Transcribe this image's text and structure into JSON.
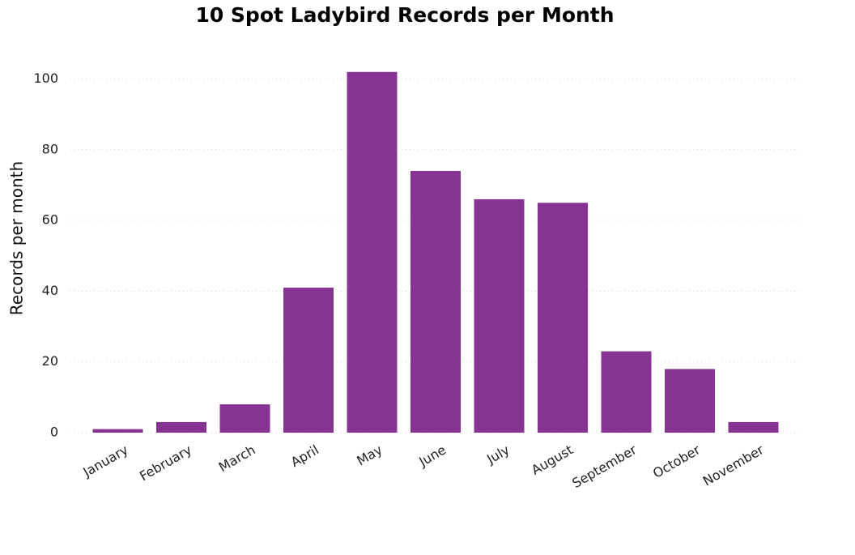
{
  "chart_data": {
    "type": "bar",
    "title": "10 Spot Ladybird Records per Month",
    "xlabel": "",
    "ylabel": "Records per month",
    "categories": [
      "January",
      "February",
      "March",
      "April",
      "May",
      "June",
      "July",
      "August",
      "September",
      "October",
      "November"
    ],
    "values": [
      1,
      3,
      8,
      41,
      102,
      74,
      66,
      65,
      23,
      18,
      3
    ],
    "ylim": [
      0,
      105
    ],
    "yticks": [
      0,
      20,
      40,
      60,
      80,
      100
    ],
    "bar_color": "#873393",
    "grid": true,
    "legend": "none"
  }
}
